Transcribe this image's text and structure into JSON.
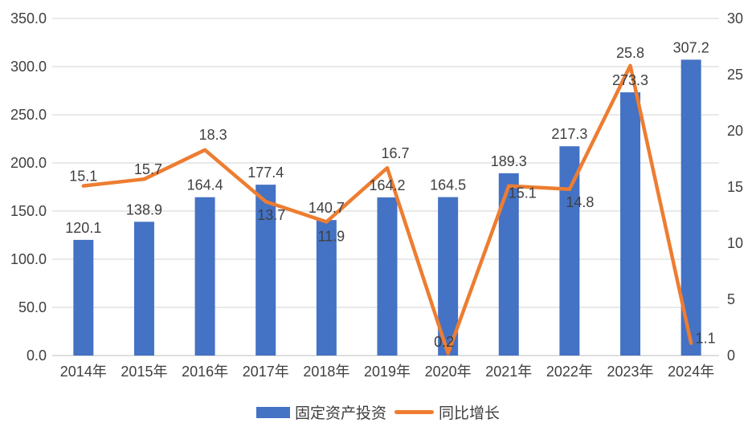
{
  "chart_data": {
    "type": "combo-bar-line",
    "categories": [
      "2014年",
      "2015年",
      "2016年",
      "2017年",
      "2018年",
      "2019年",
      "2020年",
      "2021年",
      "2022年",
      "2023年",
      "2024年"
    ],
    "series": [
      {
        "name": "固定资产投资",
        "type": "bar",
        "axis": "left",
        "color": "#4472C4",
        "values": [
          120.1,
          138.9,
          164.4,
          177.4,
          140.7,
          164.2,
          164.5,
          189.3,
          217.3,
          273.3,
          307.2
        ]
      },
      {
        "name": "同比增长",
        "type": "line",
        "axis": "right",
        "color": "#ED7D31",
        "values": [
          15.1,
          15.7,
          18.3,
          13.7,
          11.9,
          16.7,
          0.2,
          15.1,
          14.8,
          25.8,
          1.1
        ],
        "label_offsets": [
          [
            0,
            -6
          ],
          [
            5,
            -6
          ],
          [
            10,
            -13
          ],
          [
            7,
            23
          ],
          [
            6,
            24
          ],
          [
            10,
            -12
          ],
          [
            -5,
            -8
          ],
          [
            17,
            15
          ],
          [
            13,
            22
          ],
          [
            0,
            -10
          ],
          [
            18,
            0
          ]
        ]
      }
    ],
    "left_axis": {
      "min": 0,
      "max": 350,
      "step": 50,
      "tick_labels": [
        "0.0",
        "50.0",
        "100.0",
        "150.0",
        "200.0",
        "250.0",
        "300.0",
        "350.0"
      ]
    },
    "right_axis": {
      "min": 0,
      "max": 30,
      "step": 5,
      "tick_labels": [
        "0",
        "5",
        "10",
        "15",
        "20",
        "25",
        "30"
      ]
    },
    "grid": true,
    "legend_position": "bottom",
    "title": "",
    "xlabel": "",
    "ylabel": "",
    "colors": {
      "grid": "#DCDCDC",
      "axis_line": "#D4D4D4",
      "text": "#3F3F3F",
      "background": "#FFFFFF"
    }
  }
}
